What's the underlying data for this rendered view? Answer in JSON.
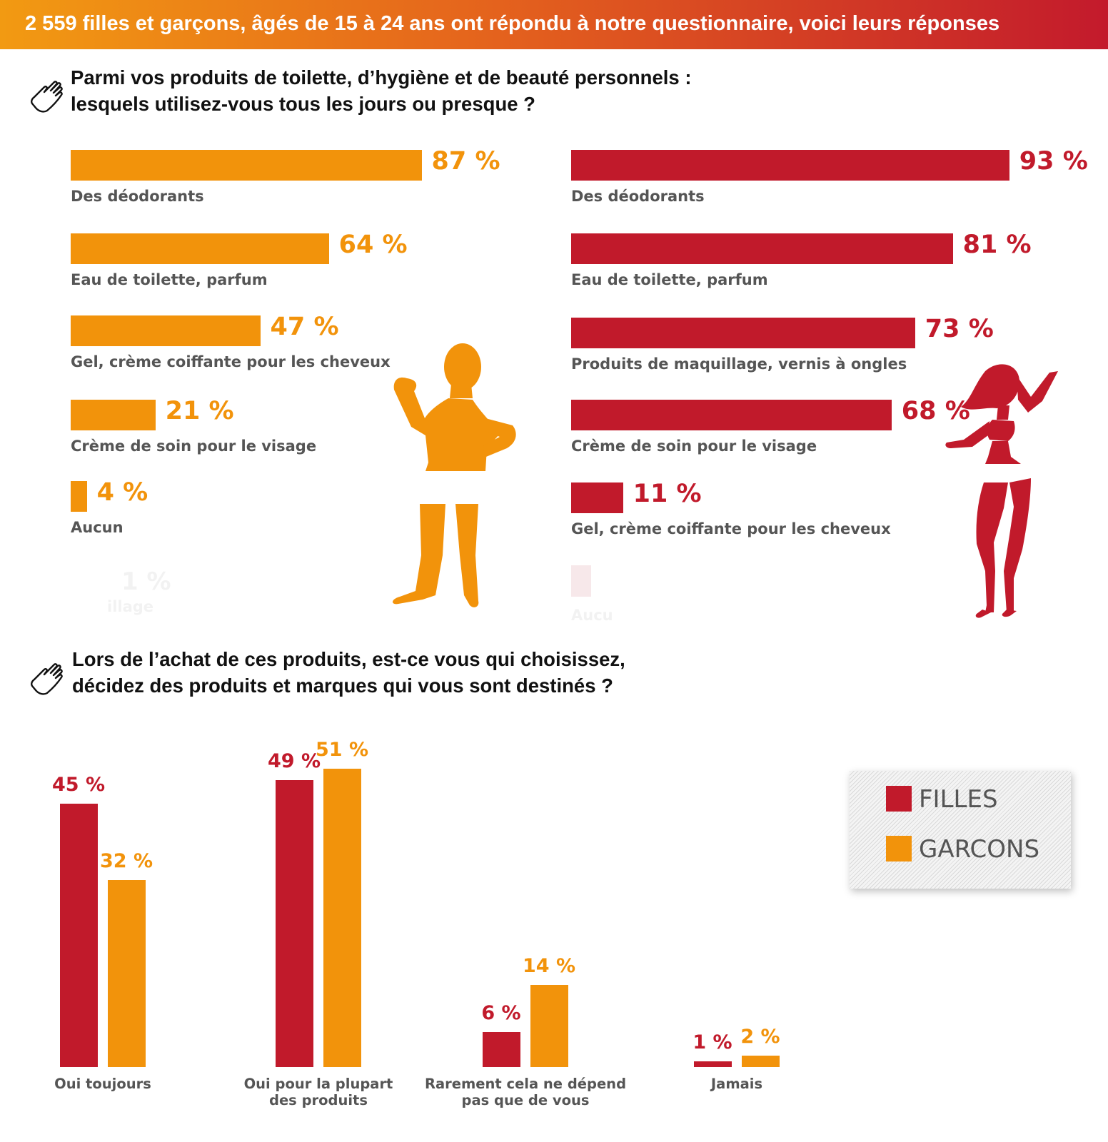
{
  "header": {
    "title": "2 559  filles et garçons, âgés de 15 à 24 ans ont répondu à notre questionnaire, voici leurs réponses"
  },
  "colors": {
    "filles": "#c11a2b",
    "garcons": "#f2930b"
  },
  "questions": {
    "q1_line1": "Parmi vos produits de toilette, d’hygiène et de beauté personnels :",
    "q1_line2": "lesquels utilisez-vous tous les jours ou presque ?",
    "q2_line1": "Lors de l’achat de ces produits, est-ce vous qui choisissez,",
    "q2_line2": "décidez des produits et marques qui vous sont destinés ?"
  },
  "icons": {
    "hand": "pointing-hand-icon",
    "boy": "boy-silhouette-icon",
    "girl": "girl-silhouette-icon"
  },
  "chart_data": [
    {
      "type": "bar",
      "orientation": "horizontal",
      "series": [
        {
          "name": "GARCONS",
          "color": "#f2930b"
        }
      ],
      "categories": [
        "Des déodorants",
        "Eau de toilette, parfum",
        "Gel, crème coiffante pour les cheveux",
        "Crème de soin pour le visage",
        "Aucun"
      ],
      "values": [
        87,
        64,
        47,
        21,
        4
      ],
      "value_labels": [
        "87 %",
        "64 %",
        "47 %",
        "21 %",
        "4 %"
      ],
      "unit": "%"
    },
    {
      "type": "bar",
      "orientation": "horizontal",
      "series": [
        {
          "name": "FILLES",
          "color": "#c11a2b"
        }
      ],
      "categories": [
        "Des déodorants",
        "Eau de toilette, parfum",
        "Produits de maquillage, vernis à ongles",
        "Crème de soin pour le visage",
        "Gel, crème coiffante pour les cheveux"
      ],
      "values": [
        93,
        81,
        73,
        68,
        11
      ],
      "value_labels": [
        "93 %",
        "81 %",
        "73 %",
        "68 %",
        "11 %"
      ],
      "unit": "%"
    },
    {
      "type": "bar",
      "orientation": "vertical",
      "categories": [
        "Oui toujours",
        "Oui pour la plupart des produits",
        "Rarement cela ne dépend pas que de vous",
        "Jamais"
      ],
      "category_lines": [
        [
          "Oui toujours"
        ],
        [
          "Oui pour la plupart",
          "des produits"
        ],
        [
          "Rarement cela ne dépend",
          "pas que de vous"
        ],
        [
          "Jamais"
        ]
      ],
      "series": [
        {
          "name": "FILLES",
          "color": "#c11a2b",
          "values": [
            45,
            49,
            6,
            1
          ],
          "value_labels": [
            "45 %",
            "49 %",
            "6 %",
            "1 %"
          ]
        },
        {
          "name": "GARCONS",
          "color": "#f2930b",
          "values": [
            32,
            51,
            14,
            2
          ],
          "value_labels": [
            "32 %",
            "51 %",
            "14 %",
            "2 %"
          ]
        }
      ],
      "legend": {
        "position": "right",
        "entries": [
          "FILLES",
          "GARCONS"
        ]
      },
      "unit": "%"
    }
  ]
}
